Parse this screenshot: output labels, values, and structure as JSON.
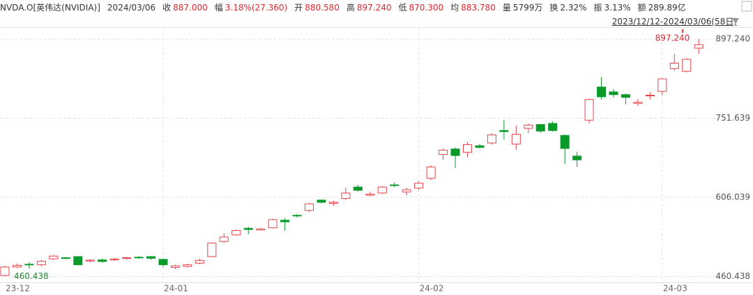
{
  "header": {
    "symbol": "NVDA.O[英伟达(NVIDIA)]",
    "date": "2024/03/06",
    "items": [
      {
        "label": "收",
        "value": "887.000"
      },
      {
        "label": "幅",
        "value": "3.18%(27.360)"
      },
      {
        "label": "开",
        "value": "880.580"
      },
      {
        "label": "高",
        "value": "897.240"
      },
      {
        "label": "低",
        "value": "870.300"
      },
      {
        "label": "均",
        "value": "883.780"
      },
      {
        "label": "量",
        "value": "5799万"
      },
      {
        "label": "换",
        "value": "2.32%"
      },
      {
        "label": "振",
        "value": "3.13%"
      },
      {
        "label": "额",
        "value": "289.89亿"
      }
    ],
    "range": "2023/12/12-2024/03/06(58日)"
  },
  "chart_data": {
    "type": "candlestick",
    "categories": [
      "23-12",
      null,
      null,
      null,
      null,
      null,
      null,
      null,
      null,
      null,
      null,
      null,
      null,
      "24-01",
      null,
      null,
      null,
      null,
      null,
      null,
      null,
      null,
      null,
      null,
      null,
      null,
      null,
      null,
      null,
      null,
      null,
      null,
      null,
      null,
      "24-02",
      null,
      null,
      null,
      null,
      null,
      null,
      null,
      null,
      null,
      null,
      null,
      null,
      null,
      null,
      null,
      null,
      null,
      null,
      null,
      "24-03",
      null,
      null,
      null
    ],
    "open": [
      462.4,
      478,
      483,
      482,
      493,
      495,
      497,
      489,
      491,
      491,
      494,
      496,
      497,
      492,
      477,
      479,
      485,
      497,
      525,
      537,
      549,
      546,
      550,
      564,
      573,
      582,
      601,
      595,
      604,
      625,
      610,
      614,
      629,
      616,
      623,
      641,
      685,
      695,
      689,
      701,
      706,
      729,
      704,
      733,
      740,
      742,
      720,
      682,
      748,
      809,
      800,
      795,
      779,
      793,
      801,
      843,
      838,
      880.58
    ],
    "high": [
      480.3,
      484,
      487,
      491,
      500,
      496,
      498,
      492,
      493,
      495,
      496,
      498,
      498,
      493,
      482,
      484,
      493,
      523,
      540,
      547,
      552,
      550,
      567,
      568,
      575,
      596,
      602,
      600,
      624,
      629,
      616,
      627,
      634,
      624,
      635,
      665,
      696,
      698,
      708,
      704,
      724,
      748,
      738,
      742,
      741,
      746,
      722,
      690,
      788,
      827,
      805,
      797,
      787,
      800,
      825,
      870,
      862,
      897.24
    ],
    "low": [
      460.438,
      476,
      475,
      479,
      491,
      492,
      481,
      486,
      486,
      489,
      492,
      493,
      491,
      478,
      474,
      477,
      483,
      496,
      522,
      535,
      538,
      545,
      549,
      545,
      569,
      579,
      595,
      590,
      601,
      617,
      608,
      612,
      625,
      609,
      620,
      638,
      675,
      660,
      680,
      696,
      703,
      712,
      694,
      724,
      725,
      727,
      667,
      662,
      742,
      786,
      790,
      777,
      774,
      786,
      794,
      839,
      836,
      870.3
    ],
    "close": [
      477.8,
      481,
      482,
      488.5,
      498,
      494,
      482,
      490.5,
      488,
      492.5,
      495,
      495,
      494,
      482,
      480,
      482,
      490,
      522,
      533,
      545,
      547,
      548,
      565,
      561,
      572,
      594,
      597,
      597,
      614,
      619,
      612,
      625,
      628,
      620,
      632,
      662,
      693,
      683,
      703,
      698,
      721,
      727,
      722,
      739,
      728,
      729,
      696,
      675,
      786,
      791,
      795,
      790,
      781,
      794,
      824,
      853,
      860,
      887
    ],
    "up_color": "#e8424a",
    "down_color": "#0a9a2a",
    "max_label": "897.240",
    "min_label": "460.438",
    "ylim": [
      449.5,
      917.8
    ],
    "yticks": [
      460.438,
      606.039,
      751.639,
      {
        "value": 897.24,
        "label": "897.240"
      }
    ],
    "grid": true
  }
}
